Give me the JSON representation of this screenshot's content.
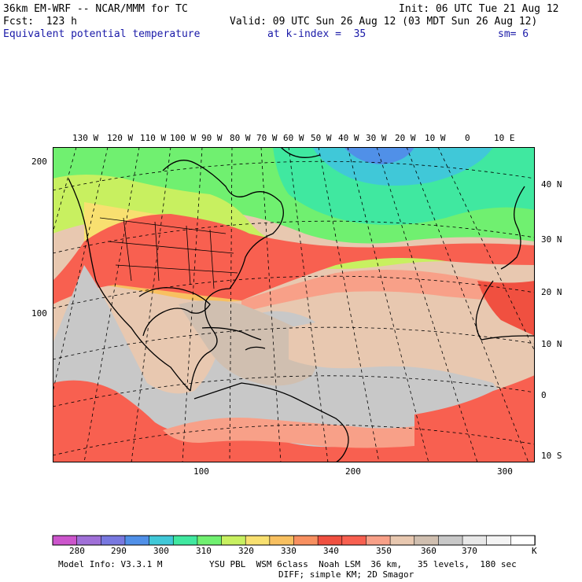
{
  "header": {
    "model": "36km EM-WRF -- NCAR/MMM for TC",
    "init": "Init: 06 UTC Tue 21 Aug 12",
    "fcst": "Fcst:  123 h",
    "valid": "Valid: 09 UTC Sun 26 Aug 12 (03 MDT Sun 26 Aug 12)",
    "field": "Equivalent potential temperature",
    "level": "at k-index =  35",
    "smooth": "sm= 6"
  },
  "longitudes": [
    "130 W",
    "120 W",
    "110 W",
    "100 W",
    "90 W",
    "80 W",
    "70 W",
    "60 W",
    "50 W",
    "40 W",
    "30 W",
    "20 W",
    "10 W",
    "0",
    "10 E"
  ],
  "latitudes": [
    "40 N",
    "30 N",
    "20 N",
    "10 N",
    "0",
    "10 S"
  ],
  "grid_y_labels": [
    "200",
    "100"
  ],
  "grid_x_labels": [
    "100",
    "200",
    "300"
  ],
  "colorbar": {
    "labels": [
      "280",
      "290",
      "300",
      "310",
      "320",
      "330",
      "340",
      "350",
      "360",
      "370"
    ],
    "unit": "K",
    "colors": [
      "#cc55cc",
      "#a070d8",
      "#7878e0",
      "#5090e8",
      "#40c8d8",
      "#40e8a0",
      "#70f070",
      "#c8f060",
      "#f8e070",
      "#f8c060",
      "#f89060",
      "#f05040",
      "#f86050",
      "#f8a088",
      "#e8c8b0",
      "#d0bfb0",
      "#c8c8c8",
      "#e8e8e8",
      "#f4f4f4",
      "#ffffff"
    ]
  },
  "footer": {
    "line1": "Model Info: V3.3.1 M         YSU PBL  WSM 6class  Noah LSM  36 km,   35 levels,  180 sec",
    "line2": "DIFF; simple KM; 2D Smagor"
  }
}
